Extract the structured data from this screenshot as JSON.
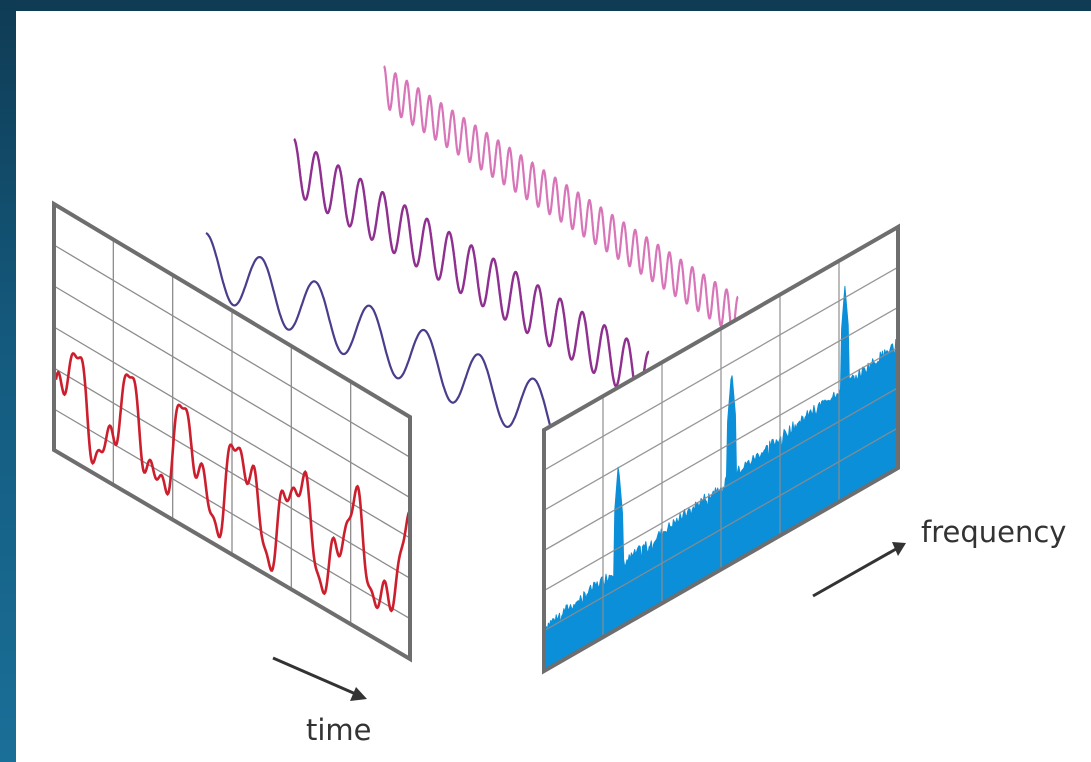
{
  "labels": {
    "time": "time",
    "frequency": "frequency"
  },
  "colors": {
    "frame_background": "#0f3b54",
    "panel_border": "#6e6e6e",
    "grid_line": "#8c8c8c",
    "time_signal": "#cc1f2d",
    "wave_low": "#4b3d8c",
    "wave_mid": "#8f2f8f",
    "wave_high": "#d874b8",
    "spectrum_fill": "#0b8fd8",
    "arrow": "#333333",
    "label_text": "#333333"
  },
  "components": [
    {
      "name": "low-frequency-sine",
      "color_key": "wave_low",
      "cycles": 6.5
    },
    {
      "name": "mid-frequency-sine",
      "color_key": "wave_mid",
      "cycles": 16
    },
    {
      "name": "high-frequency-sine",
      "color_key": "wave_high",
      "cycles": 31
    }
  ]
}
